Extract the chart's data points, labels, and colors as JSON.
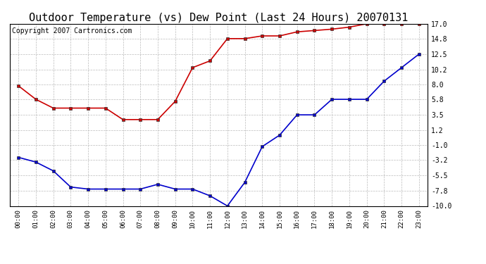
{
  "title": "Outdoor Temperature (vs) Dew Point (Last 24 Hours) 20070131",
  "copyright_text": "Copyright 2007 Cartronics.com",
  "hours": [
    "00:00",
    "01:00",
    "02:00",
    "03:00",
    "04:00",
    "05:00",
    "06:00",
    "07:00",
    "08:00",
    "09:00",
    "10:00",
    "11:00",
    "12:00",
    "13:00",
    "14:00",
    "15:00",
    "16:00",
    "17:00",
    "18:00",
    "19:00",
    "20:00",
    "21:00",
    "22:00",
    "23:00"
  ],
  "temp_red": [
    7.8,
    5.8,
    4.5,
    4.5,
    4.5,
    4.5,
    2.8,
    2.8,
    2.8,
    5.5,
    10.5,
    11.5,
    14.8,
    14.8,
    15.2,
    15.2,
    15.8,
    16.0,
    16.2,
    16.5,
    17.0,
    17.0,
    17.0,
    17.0
  ],
  "temp_blue": [
    -2.8,
    -3.5,
    -4.8,
    -7.2,
    -7.5,
    -7.5,
    -7.5,
    -7.5,
    -6.8,
    -7.5,
    -7.5,
    -8.5,
    -10.0,
    -6.5,
    -1.2,
    0.5,
    3.5,
    3.5,
    5.8,
    5.8,
    5.8,
    8.5,
    10.5,
    12.5
  ],
  "ylim": [
    -10.0,
    17.0
  ],
  "yticks": [
    17.0,
    14.8,
    12.5,
    10.2,
    8.0,
    5.8,
    3.5,
    1.2,
    -1.0,
    -3.2,
    -5.5,
    -7.8,
    -10.0
  ],
  "red_color": "#cc0000",
  "blue_color": "#0000cc",
  "bg_color": "#ffffff",
  "grid_color": "#bbbbbb",
  "title_fontsize": 11,
  "copyright_fontsize": 7
}
